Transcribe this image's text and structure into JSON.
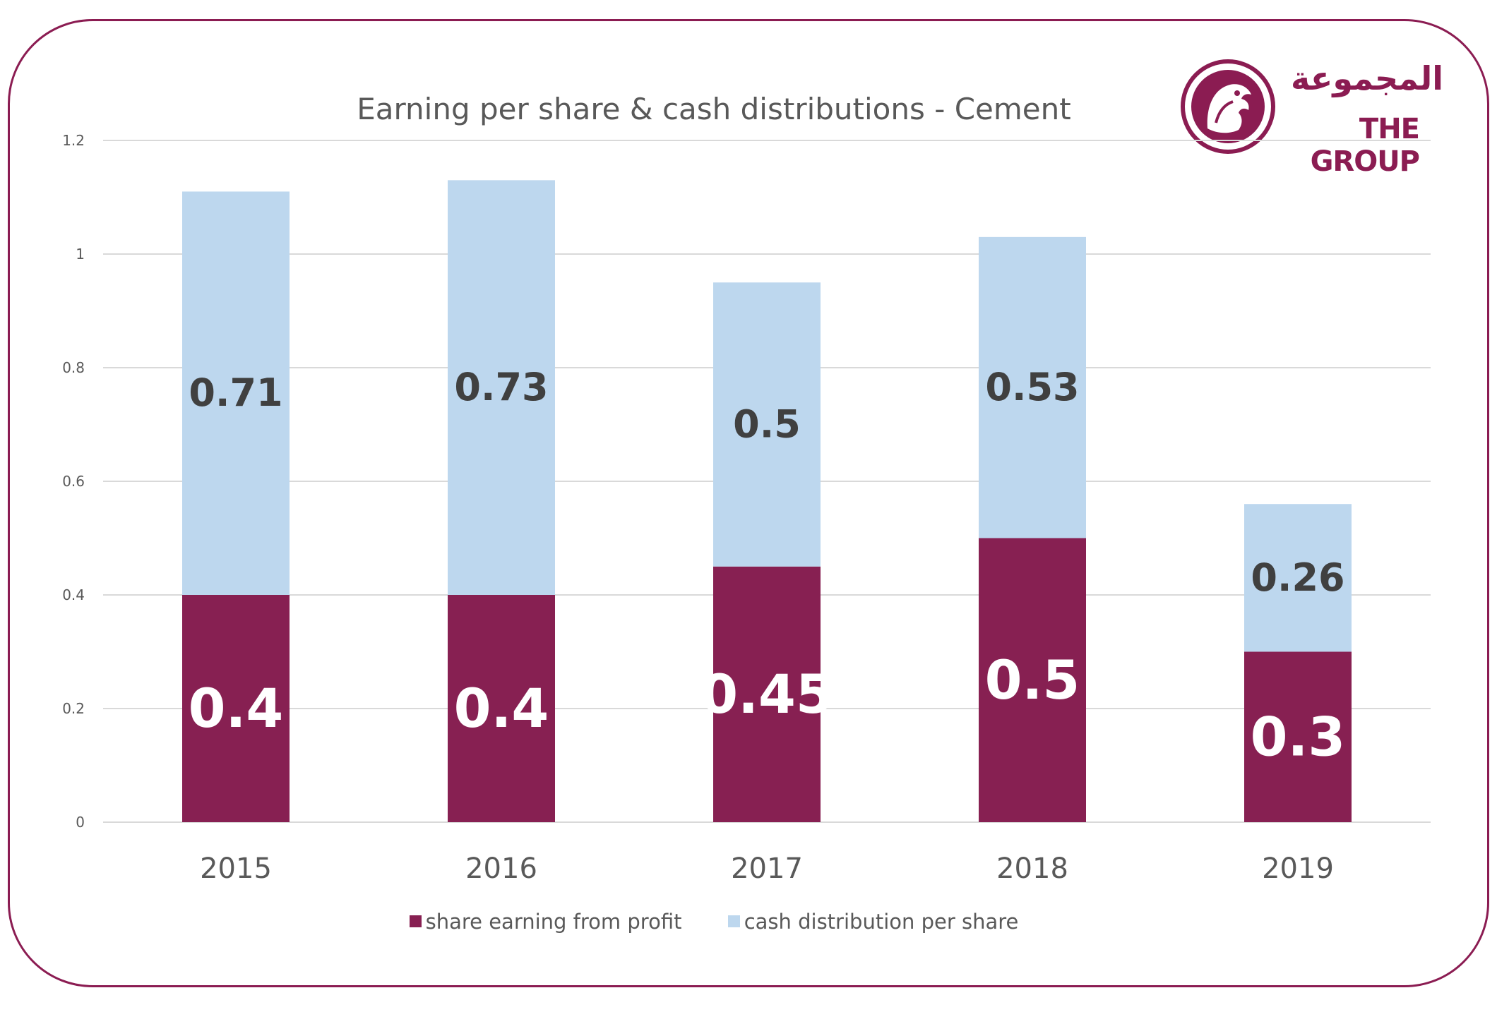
{
  "logo": {
    "arabic_text": "المجموعة",
    "english_text": "THE GROUP"
  },
  "colors": {
    "frame": "#8b1c52",
    "earning": "#872052",
    "cash": "#bdd7ee",
    "grid": "#d9d9d9",
    "axis_text": "#595959"
  },
  "chart_data": {
    "type": "bar",
    "stacked": true,
    "title": "Earning per share & cash distributions - Cement",
    "categories": [
      "2015",
      "2016",
      "2017",
      "2018",
      "2019"
    ],
    "series": [
      {
        "name": "share earning from profit",
        "values": [
          0.4,
          0.4,
          0.45,
          0.5,
          0.3
        ],
        "labels": [
          "0.4",
          "0.4",
          "0.45",
          "0.5",
          "0.3"
        ],
        "color": "#872052",
        "label_color": "#ffffff"
      },
      {
        "name": "cash distribution per share",
        "values": [
          0.71,
          0.73,
          0.5,
          0.53,
          0.26
        ],
        "labels": [
          "0.71",
          "0.73",
          "0.5",
          "0.53",
          "0.26"
        ],
        "color": "#bdd7ee",
        "label_color": "#404040"
      }
    ],
    "yticks": [
      "0",
      "0.2",
      "0.4",
      "0.6",
      "0.8",
      "1",
      "1.2"
    ],
    "ylim": [
      0,
      1.2
    ],
    "grid": true,
    "legend_position": "bottom"
  }
}
